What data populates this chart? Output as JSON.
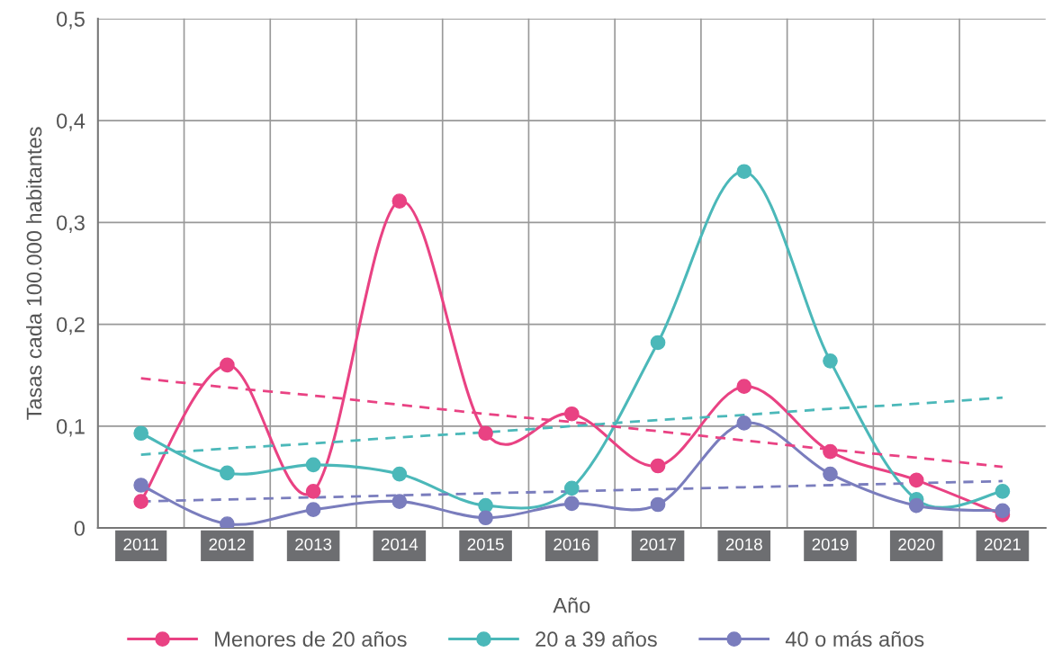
{
  "chart_data": {
    "type": "line",
    "xlabel": "Año",
    "ylabel": "Tasas cada 100.000 habitantes",
    "categories": [
      "2011",
      "2012",
      "2013",
      "2014",
      "2015",
      "2016",
      "2017",
      "2018",
      "2019",
      "2020",
      "2021"
    ],
    "series": [
      {
        "name": "Menores de 20 años",
        "color": "#e94283",
        "values": [
          0.026,
          0.16,
          0.036,
          0.321,
          0.093,
          0.112,
          0.061,
          0.139,
          0.075,
          0.047,
          0.013
        ]
      },
      {
        "name": "20 a 39 años",
        "color": "#4bb8b9",
        "values": [
          0.093,
          0.054,
          0.062,
          0.053,
          0.022,
          0.039,
          0.182,
          0.35,
          0.164,
          0.028,
          0.036
        ]
      },
      {
        "name": "40 o más años",
        "color": "#7a7dbd",
        "values": [
          0.042,
          0.004,
          0.018,
          0.026,
          0.01,
          0.024,
          0.023,
          0.103,
          0.053,
          0.022,
          0.017
        ]
      },
      {
        "type": "line",
        "color": "#e94283",
        "line_style": "dashed",
        "marker": "none",
        "values": [
          0.147,
          0.138,
          0.13,
          0.121,
          0.112,
          0.104,
          0.095,
          0.086,
          0.077,
          0.069,
          0.06
        ]
      },
      {
        "type": "line",
        "color": "#4bb8b9",
        "line_style": "dashed",
        "marker": "none",
        "values": [
          0.072,
          0.078,
          0.083,
          0.089,
          0.094,
          0.1,
          0.106,
          0.111,
          0.117,
          0.122,
          0.128
        ]
      },
      {
        "type": "line",
        "color": "#7a7dbd",
        "line_style": "dashed",
        "marker": "none",
        "values": [
          0.026,
          0.028,
          0.03,
          0.032,
          0.034,
          0.036,
          0.038,
          0.04,
          0.042,
          0.044,
          0.046
        ]
      }
    ],
    "ylim": [
      0,
      0.5
    ],
    "yticks": [
      0,
      {
        "value": 0.1,
        "label": "0,1"
      },
      {
        "value": 0.2,
        "label": "0,2"
      },
      {
        "value": 0.3,
        "label": "0,3"
      },
      {
        "value": 0.4,
        "label": "0,4"
      },
      {
        "value": 0.5,
        "label": "0,5"
      }
    ],
    "grid": true,
    "legend": "bottom",
    "marker": "circle",
    "line_style": "solid"
  }
}
